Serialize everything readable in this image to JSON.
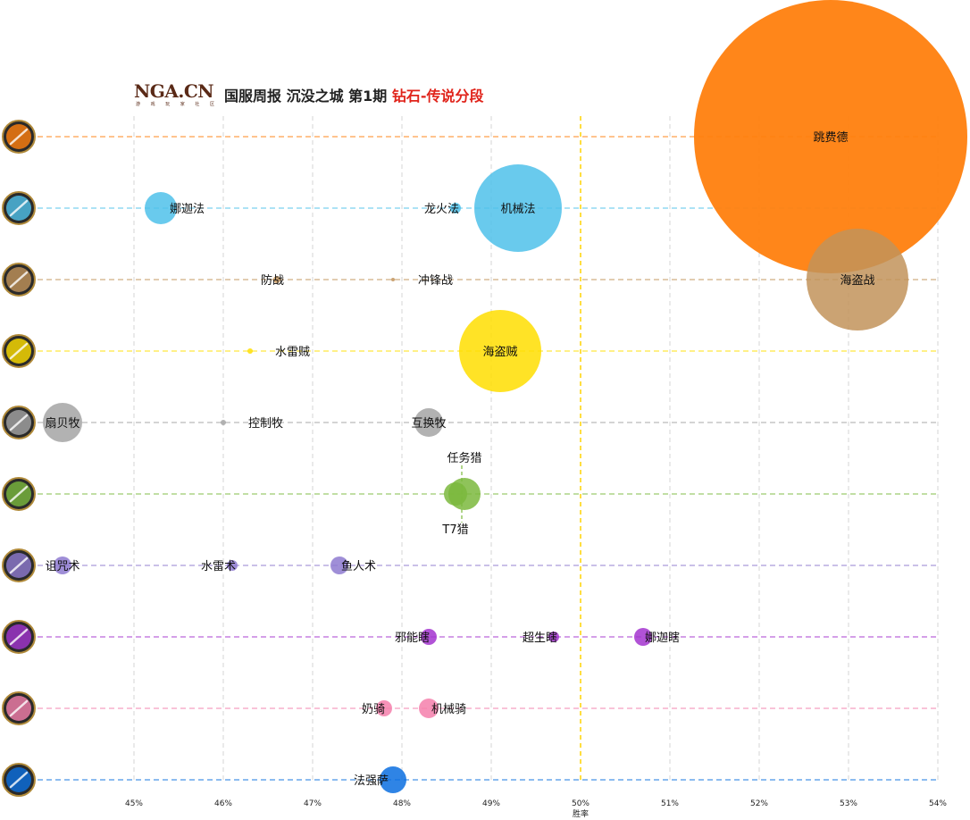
{
  "logo": {
    "text": "NGA.CN",
    "subtext": "游 戏 玩 家 社 区"
  },
  "title": {
    "main": "国服周报 沉没之城 第1期",
    "highlight": "钻石-传说分段"
  },
  "colors": {
    "druid": "#ff7f0e",
    "mage": "#4fc1ea",
    "warrior": "#c2935a",
    "rogue": "#ffde00",
    "priest": "#a5a5a5",
    "hunter": "#7bb93d",
    "warlock": "#8e7ad0",
    "demonhunter": "#a334cf",
    "paladin": "#f47fab",
    "shaman": "#0a6fe0"
  },
  "chart_data": {
    "type": "scatter",
    "subtype": "bubble",
    "xlabel": "胜率",
    "x_unit": "%",
    "xlim": [
      44,
      54
    ],
    "xticks": [
      45,
      46,
      47,
      48,
      49,
      50,
      51,
      52,
      53,
      54
    ],
    "x_reference_line": 50,
    "rows": [
      {
        "class": "druid",
        "icon": "druid-class-icon",
        "color": "#ff7f0e",
        "points": [
          {
            "label": "跳费德",
            "x": 52.8,
            "size": 153
          }
        ]
      },
      {
        "class": "mage",
        "icon": "mage-class-icon",
        "color": "#4fc1ea",
        "points": [
          {
            "label": "娜迦法",
            "x": 45.3,
            "size": 18
          },
          {
            "label": "龙火法",
            "x": 48.6,
            "size": 6
          },
          {
            "label": "机械法",
            "x": 49.3,
            "size": 49
          }
        ]
      },
      {
        "class": "warrior",
        "icon": "warrior-class-icon",
        "color": "#c2935a",
        "points": [
          {
            "label": "防战",
            "x": 46.6,
            "size": 4
          },
          {
            "label": "冲锋战",
            "x": 47.9,
            "size": 2
          },
          {
            "label": "海盗战",
            "x": 53.1,
            "size": 57
          }
        ]
      },
      {
        "class": "rogue",
        "icon": "rogue-class-icon",
        "color": "#ffde00",
        "points": [
          {
            "label": "水雷贼",
            "x": 46.3,
            "size": 3
          },
          {
            "label": "海盗贼",
            "x": 49.1,
            "size": 46
          }
        ]
      },
      {
        "class": "priest",
        "icon": "priest-class-icon",
        "color": "#a5a5a5",
        "points": [
          {
            "label": "扇贝牧",
            "x": 44.2,
            "size": 22
          },
          {
            "label": "控制牧",
            "x": 46.0,
            "size": 3
          },
          {
            "label": "互换牧",
            "x": 48.3,
            "size": 16
          }
        ]
      },
      {
        "class": "hunter",
        "icon": "hunter-class-icon",
        "color": "#7bb93d",
        "points": [
          {
            "label": "任务猎",
            "x": 48.7,
            "size": 18
          },
          {
            "label": "T7猎",
            "x": 48.6,
            "size": 13
          }
        ]
      },
      {
        "class": "warlock",
        "icon": "warlock-class-icon",
        "color": "#8e7ad0",
        "points": [
          {
            "label": "诅咒术",
            "x": 44.2,
            "size": 10
          },
          {
            "label": "水雷术",
            "x": 46.1,
            "size": 6
          },
          {
            "label": "鱼人术",
            "x": 47.3,
            "size": 10
          }
        ]
      },
      {
        "class": "demonhunter",
        "icon": "demon-hunter-class-icon",
        "color": "#a334cf",
        "points": [
          {
            "label": "邪能瞎",
            "x": 48.3,
            "size": 9
          },
          {
            "label": "超生瞎",
            "x": 49.7,
            "size": 6
          },
          {
            "label": "娜迦瞎",
            "x": 50.7,
            "size": 10
          }
        ]
      },
      {
        "class": "paladin",
        "icon": "paladin-class-icon",
        "color": "#f47fab",
        "points": [
          {
            "label": "奶骑",
            "x": 47.8,
            "size": 9
          },
          {
            "label": "机械骑",
            "x": 48.3,
            "size": 11
          }
        ]
      },
      {
        "class": "shaman",
        "icon": "shaman-class-icon",
        "color": "#0a6fe0",
        "points": [
          {
            "label": "法强萨",
            "x": 47.9,
            "size": 15
          }
        ]
      }
    ]
  }
}
